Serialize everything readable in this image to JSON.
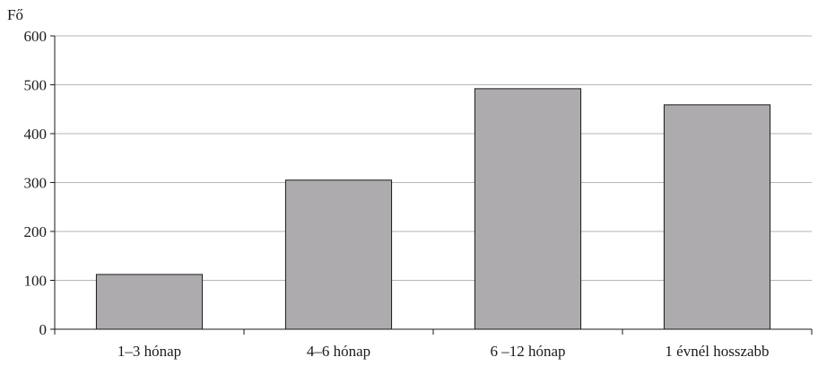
{
  "chart_data": {
    "type": "bar",
    "ylabel": "Fő",
    "categories": [
      "1–3 hónap",
      "4–6 hónap",
      "6 –12 hónap",
      "1 évnél hosszabb"
    ],
    "values": [
      112,
      305,
      492,
      459
    ],
    "ylim": [
      0,
      600
    ],
    "yticks": [
      0,
      100,
      200,
      300,
      400,
      500,
      600
    ],
    "grid": true,
    "legend": "none",
    "bar_color": "#adabad"
  }
}
